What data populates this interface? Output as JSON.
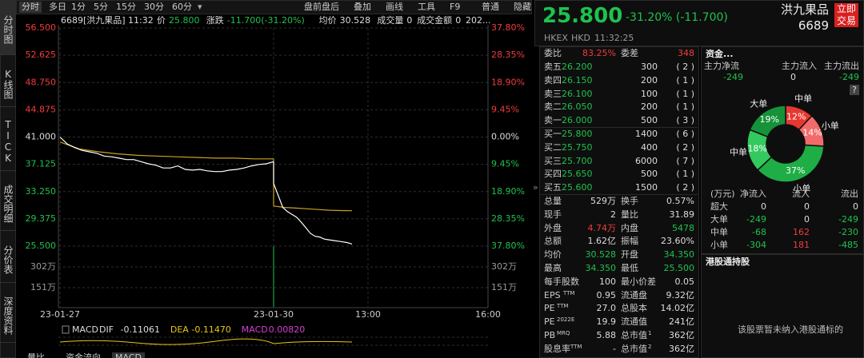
{
  "sidebar": [
    "分时图",
    "K线图",
    "TICK",
    "成交明细",
    "分价表",
    "深度资料"
  ],
  "toolbar": {
    "left": [
      "分时",
      "多日",
      "1分",
      "5分",
      "15分",
      "30分",
      "60分"
    ],
    "right": [
      "盘前盘后",
      "叠加",
      "画线",
      "工具",
      "F9",
      "普通",
      "隐藏"
    ]
  },
  "info": {
    "code": "6689[洪九果品]",
    "time": "11:32",
    "fields": [
      {
        "label": "价",
        "value": "25.800",
        "color": "#1fc24e"
      },
      {
        "label": "涨跌",
        "value": "-11.700(-31.20%)",
        "color": "#1fc24e"
      },
      {
        "label": "均价",
        "value": "30.528",
        "color": "#dddddd"
      },
      {
        "label": "成交量",
        "value": "0",
        "color": "#dddddd"
      },
      {
        "label": "成交金额",
        "value": "0",
        "color": "#dddddd"
      }
    ],
    "more": "202..."
  },
  "price_chart": {
    "ylim": [
      25.5,
      56.5
    ],
    "yticks": [
      {
        "value": 56.5,
        "label": "56.500"
      },
      {
        "value": 52.625,
        "label": "52.625"
      },
      {
        "value": 48.75,
        "label": "48.750"
      },
      {
        "value": 44.875,
        "label": "44.875"
      },
      {
        "value": 41,
        "label": "41.000"
      },
      {
        "value": 37.125,
        "label": "37.125"
      },
      {
        "value": 33.25,
        "label": "33.250"
      },
      {
        "value": 29.375,
        "label": "29.375"
      },
      {
        "value": 25.5,
        "label": "25.500"
      }
    ],
    "right_labels": [
      "37.80%",
      "28.35%",
      "18.90%",
      "9.45%",
      "0.00%",
      "9.45%",
      "18.90%",
      "28.35%",
      "37.80%"
    ],
    "volume_labels": [
      "302万",
      "151万"
    ],
    "x_labels": [
      "23-01-27",
      "23-01-30",
      "13:00",
      "16:00"
    ],
    "price": {
      "color": "#ffffff",
      "sessions": [
        [
          41.0,
          40.0,
          39.5,
          39.1,
          38.9,
          38.7,
          38.3,
          38.2,
          38.0,
          37.8,
          37.8,
          37.5,
          37.2,
          37.0,
          36.6,
          36.6,
          36.9,
          36.4,
          36.3,
          36.4,
          36.2,
          36.1,
          36.1,
          36.3,
          36.4,
          36.6,
          36.9,
          37.1,
          37.2,
          37.5
        ],
        [
          34.4,
          32.7,
          31.0,
          30.4,
          30.0,
          29.6,
          28.9,
          28.1,
          27.3,
          26.9,
          26.8,
          26.5,
          26.4,
          26.3,
          26.2,
          26.1,
          26.0,
          25.8
        ]
      ]
    },
    "average": {
      "color": "#c9a227",
      "sessions": [
        [
          40.3,
          39.3,
          38.9,
          38.6,
          38.4,
          38.3,
          38.2,
          38.1,
          38.0,
          38.0,
          37.9,
          37.9
        ],
        [
          31.2,
          31.0,
          30.9,
          30.8,
          30.7,
          30.6,
          30.55,
          30.53
        ]
      ]
    }
  },
  "macd": {
    "label": "MACD",
    "fields": [
      {
        "label": "DIF",
        "value": "-0.11061",
        "color": "#dddddd"
      },
      {
        "label": "DEA",
        "value": "-0.11470",
        "color": "#e6c619"
      },
      {
        "label": "MACD",
        "value": "0.00820",
        "color": "#d63fd6"
      }
    ]
  },
  "bottom_tabs": [
    "量比",
    "资金流向",
    "MACD"
  ],
  "quote": {
    "price": "25.800",
    "change": "-31.20% (-11.700)",
    "name": "洪九果品",
    "code": "6689",
    "trade_button": "立即交易",
    "exchange": "HKEX",
    "currency": "HKD",
    "time": "11:32:25"
  },
  "order_book": {
    "ratio_label": "委比",
    "ratio": "83.25%",
    "diff_label": "委差",
    "diff": "348",
    "rows": [
      [
        "卖五",
        "26.200",
        "300",
        "( 2 )"
      ],
      [
        "卖四",
        "26.150",
        "200",
        "( 1 )"
      ],
      [
        "卖三",
        "26.100",
        "100",
        "( 1 )"
      ],
      [
        "卖二",
        "26.050",
        "200",
        "( 1 )"
      ],
      [
        "卖一",
        "26.000",
        "500",
        "( 3 )"
      ],
      [
        "买一",
        "25.800",
        "1400",
        "( 6 )"
      ],
      [
        "买二",
        "25.750",
        "400",
        "( 2 )"
      ],
      [
        "买三",
        "25.700",
        "6000",
        "( 7 )"
      ],
      [
        "买四",
        "25.650",
        "500",
        "( 1 )"
      ],
      [
        "买五",
        "25.600",
        "1500",
        "( 2 )"
      ]
    ]
  },
  "stats": [
    {
      "l1": "总量",
      "v1": "529万",
      "l2": "换手",
      "v2": "0.57%"
    },
    {
      "l1": "现手",
      "v1": "2",
      "l2": "量比",
      "v2": "31.89"
    },
    {
      "l1": "外盘",
      "v1": "4.74万",
      "c1": "#f23c3c",
      "l2": "内盘",
      "v2": "5478",
      "c2": "#1fc24e"
    },
    {
      "l1": "总额",
      "v1": "1.62亿",
      "l2": "振幅",
      "v2": "23.60%"
    },
    {
      "l1": "均价",
      "v1": "30.528",
      "c1": "#1fc24e",
      "l2": "开盘",
      "v2": "34.350",
      "c2": "#1fc24e"
    },
    {
      "l1": "最高",
      "v1": "34.350",
      "c1": "#1fc24e",
      "l2": "最低",
      "v2": "25.500",
      "c2": "#1fc24e"
    },
    {
      "l1": "每手股数",
      "v1": "100",
      "l2": "最小价差",
      "v2": "0.05"
    },
    {
      "l1": "EPS",
      "s1": "TTM",
      "v1": "0.95",
      "l2": "流通盘",
      "v2": "9.32亿"
    },
    {
      "l1": "PE",
      "s1": "TTM",
      "v1": "27.0",
      "l2": "总股本",
      "v2": "14.02亿"
    },
    {
      "l1": "PE",
      "s1": "2022E",
      "v1": "19.9",
      "l2": "流通值",
      "v2": "241亿"
    },
    {
      "l1": "PB",
      "s1": "MRQ",
      "v1": "5.88",
      "l2": "总市值",
      "s2": "1",
      "v2": "362亿"
    },
    {
      "l1": "股息率",
      "s1": "TTM",
      "v1": "-",
      "l2": "总市值",
      "s2": "2",
      "v2": "362亿"
    }
  ],
  "funds": {
    "title": "资金...",
    "headers": [
      "主力净流",
      "主力流入",
      "主力流出"
    ],
    "values": [
      "-249",
      "0",
      "-249"
    ],
    "help": "?",
    "pie": {
      "slices": [
        "中单",
        "小单",
        "小单",
        "中单",
        "大单"
      ],
      "values": [
        12,
        14,
        37,
        18,
        19
      ],
      "value_labels": [
        "12%",
        "14%",
        "37%",
        "18%",
        "19%"
      ],
      "colors": [
        "#e8382f",
        "#f26b6b",
        "#1fae45",
        "#33c95e",
        "#15923a"
      ]
    },
    "table": {
      "headers": [
        "(万元)",
        "净流入",
        "流入",
        "流出"
      ],
      "rows": [
        [
          "超大",
          "0",
          "0",
          "0"
        ],
        [
          "大单",
          "-249",
          "0",
          "-249"
        ],
        [
          "中单",
          "-68",
          "162",
          "-230"
        ],
        [
          "小单",
          "-304",
          "181",
          "-485"
        ]
      ]
    }
  },
  "hk_connect": {
    "title": "港股通持股",
    "message": "该股票暂未纳入港股通标的"
  }
}
